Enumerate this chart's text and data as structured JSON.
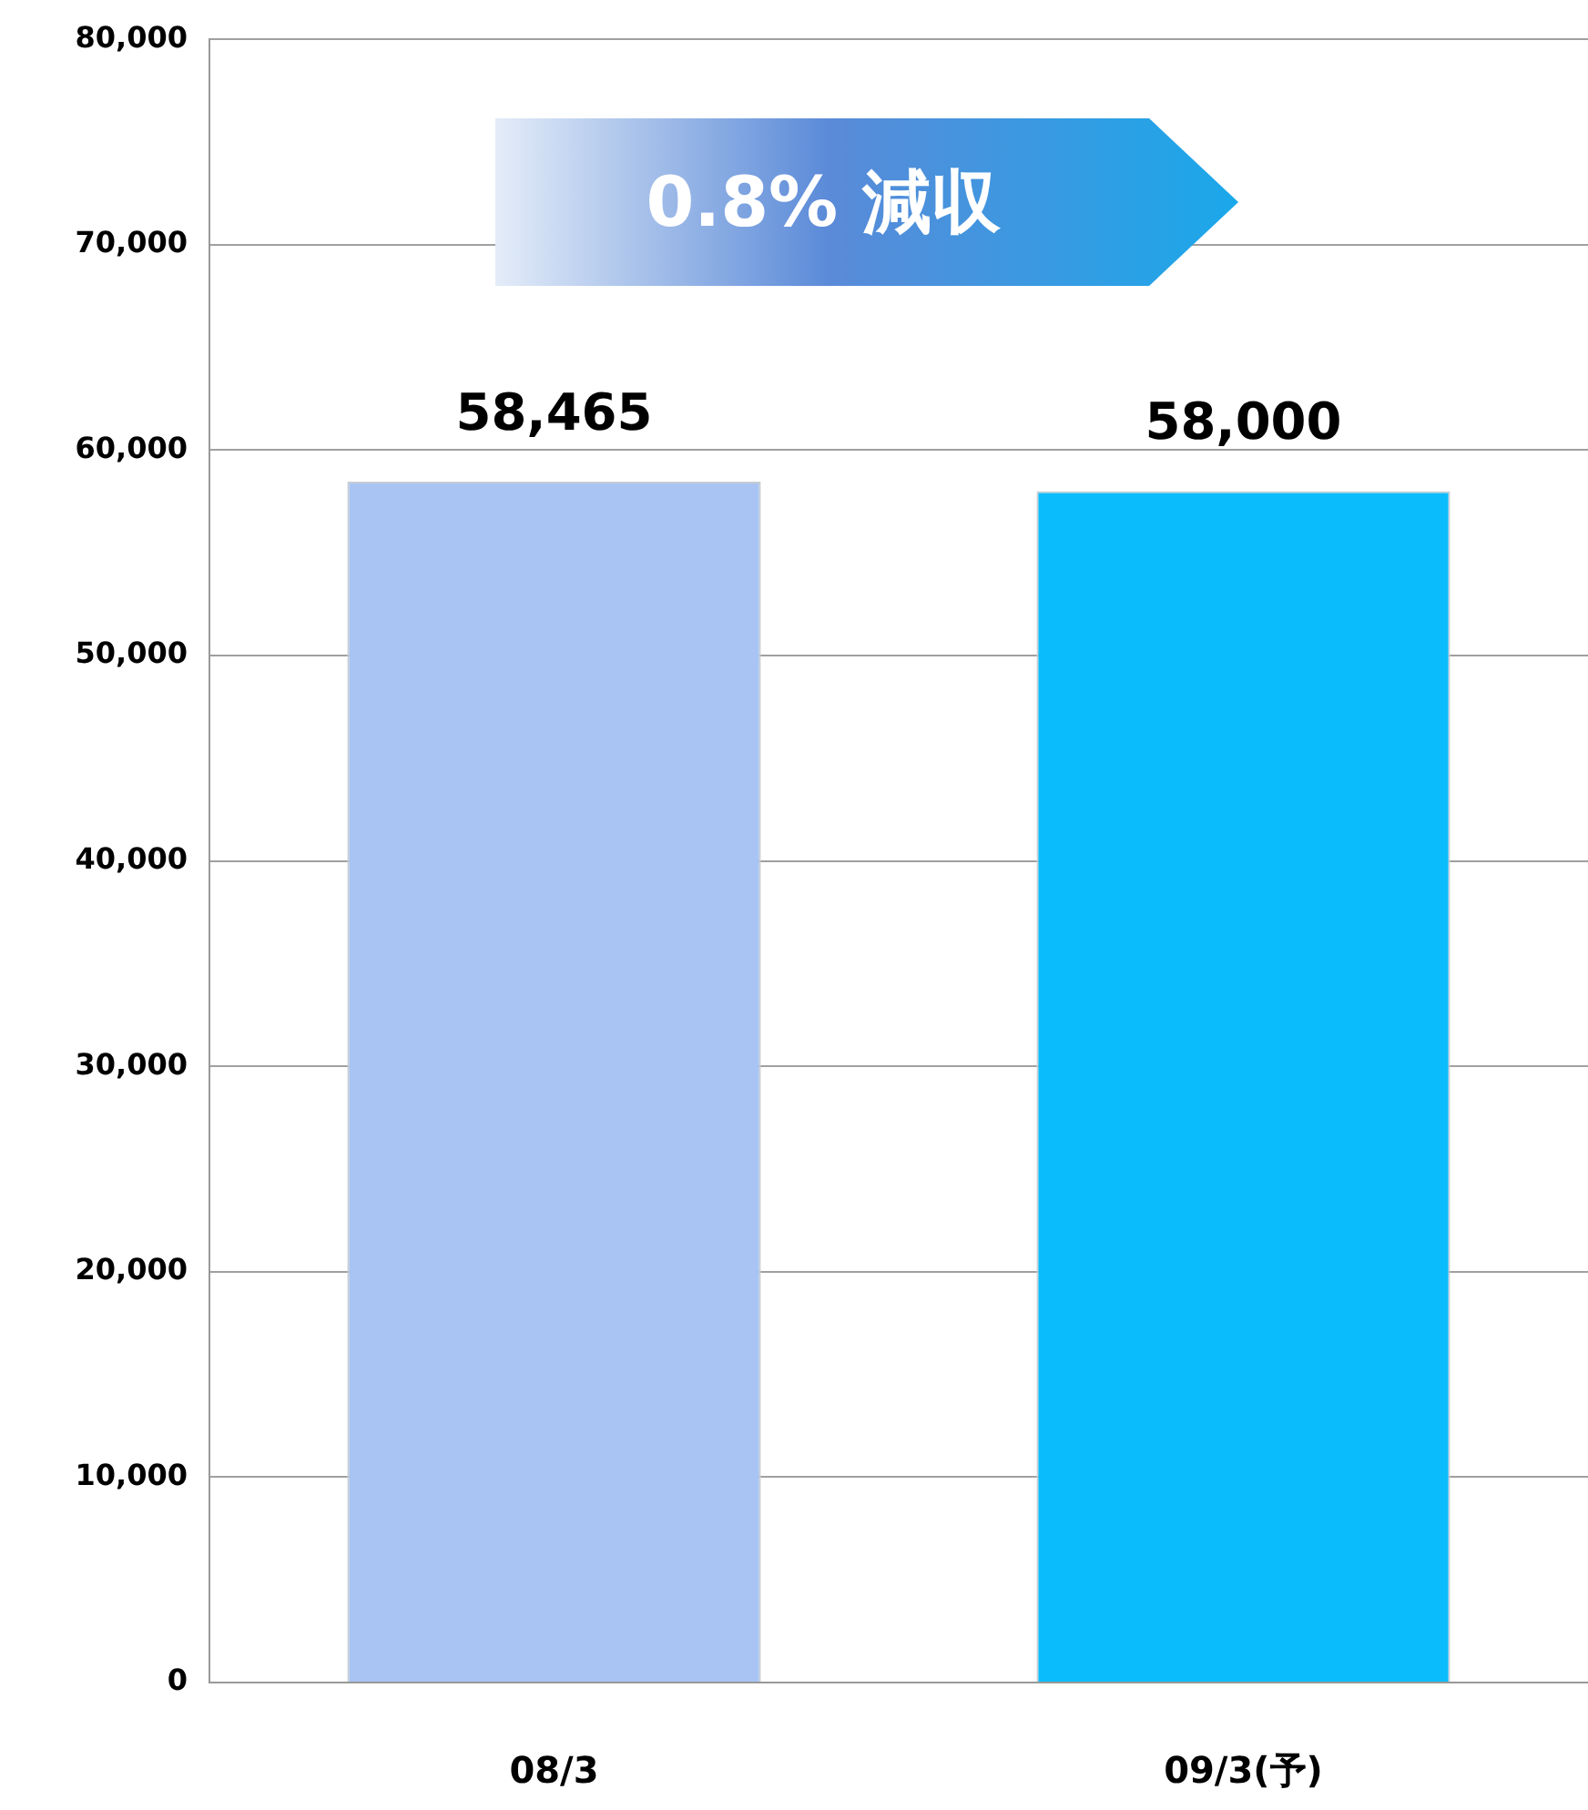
{
  "chart_data": {
    "type": "bar",
    "categories": [
      "08/3",
      "09/3(予)"
    ],
    "values": [
      58465,
      58000
    ],
    "value_labels": [
      "58,465",
      "58,000"
    ],
    "colors": [
      "#a9c4f2",
      "#0bbcfc"
    ],
    "ylim": [
      0,
      80000
    ],
    "yticks": [
      0,
      {
        "value": 10000,
        "label": "10,000"
      },
      {
        "value": 20000,
        "label": "20,000"
      },
      {
        "value": 30000,
        "label": "30,000"
      },
      {
        "value": 40000,
        "label": "40,000"
      },
      {
        "value": 50000,
        "label": "50,000"
      },
      {
        "value": 60000,
        "label": "60,000"
      },
      {
        "value": 70000,
        "label": "70,000"
      },
      {
        "value": 80000,
        "label": "80,000"
      }
    ],
    "grid": "y",
    "legend": false,
    "annotations": [
      "0.8% 減収"
    ]
  }
}
